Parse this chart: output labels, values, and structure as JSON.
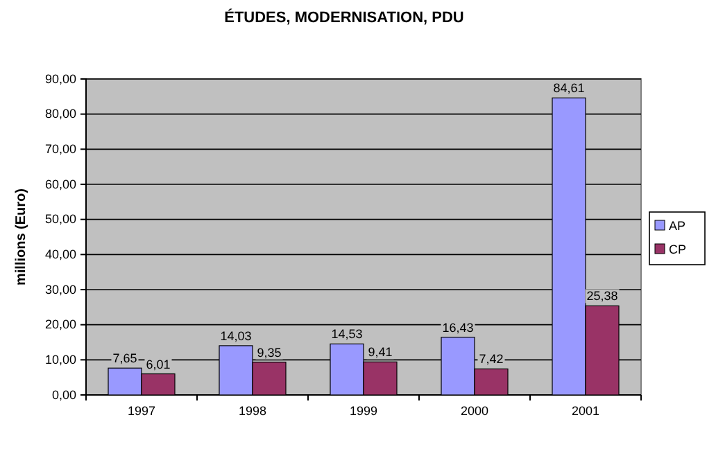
{
  "chart_data": {
    "type": "bar",
    "title": "ÉTUDES, MODERNISATION, PDU",
    "ylabel": "millions (Euro)",
    "categories": [
      "1997",
      "1998",
      "1999",
      "2000",
      "2001"
    ],
    "series": [
      {
        "name": "AP",
        "color": "#9999ff",
        "values": [
          7.65,
          14.03,
          14.53,
          16.43,
          84.61
        ],
        "value_labels": [
          "7,65",
          "14,03",
          "14,53",
          "16,43",
          "84,61"
        ]
      },
      {
        "name": "CP",
        "color": "#993366",
        "values": [
          6.01,
          9.35,
          9.41,
          7.42,
          25.38
        ],
        "value_labels": [
          "6,01",
          "9,35",
          "9,41",
          "7,42",
          "25,38"
        ]
      }
    ],
    "ylim": [
      0,
      90
    ],
    "yticks": [
      {
        "value": 0,
        "label": "0,00"
      },
      {
        "value": 10,
        "label": "10,00"
      },
      {
        "value": 20,
        "label": "20,00"
      },
      {
        "value": 30,
        "label": "30,00"
      },
      {
        "value": 40,
        "label": "40,00"
      },
      {
        "value": 50,
        "label": "50,00"
      },
      {
        "value": 60,
        "label": "60,00"
      },
      {
        "value": 70,
        "label": "70,00"
      },
      {
        "value": 80,
        "label": "80,00"
      },
      {
        "value": 90,
        "label": "90,00"
      }
    ],
    "grid": "y",
    "legend": "right"
  }
}
